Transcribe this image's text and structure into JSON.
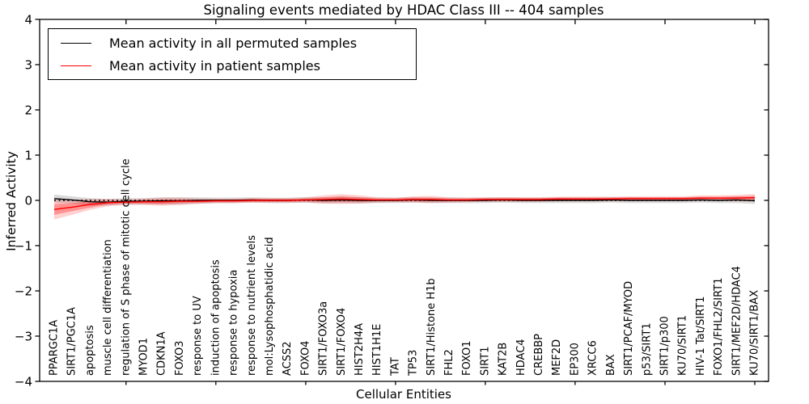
{
  "figure": {
    "title": "Signaling events mediated by HDAC Class III -- 404 samples",
    "xlabel": "Cellular Entities",
    "ylabel": "Inferred Activity"
  },
  "chart_data": {
    "type": "line",
    "title": "Signaling events mediated by HDAC Class III -- 404 samples",
    "xlabel": "Cellular Entities",
    "ylabel": "Inferred Activity",
    "ylim": [
      -4,
      4
    ],
    "yticks": [
      4,
      3,
      2,
      1,
      0,
      -1,
      -2,
      -3,
      -4
    ],
    "x_major_tick_every": 5,
    "grid": false,
    "legend_position": "upper left",
    "zero_line": {
      "y": 0,
      "style": "dotted",
      "color": "#000000"
    },
    "categories": [
      "PPARGC1A",
      "SIRT1/PGC1A",
      "apoptosis",
      "muscle cell differentiation",
      "regulation of S phase of mitotic cell cycle",
      "MYOD1",
      "CDKN1A",
      "FOXO3",
      "response to UV",
      "induction of apoptosis",
      "response to hypoxia",
      "response to nutrient levels",
      "mol:Lysophosphatidic acid",
      "ACSS2",
      "FOXO4",
      "SIRT1/FOXO3a",
      "SIRT1/FOXO4",
      "HIST2H4A",
      "HIST1H1E",
      "TAT",
      "TP53",
      "SIRT1/Histone H1b",
      "FHL2",
      "FOXO1",
      "SIRT1",
      "KAT2B",
      "HDAC4",
      "CREBBP",
      "MEF2D",
      "EP300",
      "XRCC6",
      "BAX",
      "SIRT1/PCAF/MYOD",
      "p53/SIRT1",
      "SIRT1/p300",
      "KU70/SIRT1",
      "HIV-1 Tat/SIRT1",
      "FOXO1/FHL2/SIRT1",
      "SIRT1/MEF2D/HDAC4",
      "KU70/SIRT1/BAX"
    ],
    "series": [
      {
        "name": "Mean activity in all permuted samples",
        "color": "#000000",
        "band_color": "rgba(0,0,0,0.14)",
        "values": [
          0.04,
          0.01,
          -0.03,
          -0.04,
          -0.02,
          -0.02,
          -0.01,
          -0.01,
          0,
          0,
          0,
          0.01,
          0,
          0,
          0.01,
          0,
          0.01,
          0,
          0,
          0,
          0.01,
          0,
          0,
          0,
          0,
          0.01,
          0,
          0,
          0,
          0,
          0,
          0.01,
          0,
          0,
          0,
          0,
          0.01,
          0,
          0.01,
          -0.01
        ],
        "band": [
          0.09,
          0.08,
          0.08,
          0.07,
          0.07,
          0.07,
          0.08,
          0.08,
          0.07,
          0.06,
          0.06,
          0.06,
          0.06,
          0.06,
          0.06,
          0.07,
          0.07,
          0.07,
          0.06,
          0.06,
          0.06,
          0.06,
          0.06,
          0.06,
          0.06,
          0.06,
          0.06,
          0.06,
          0.06,
          0.06,
          0.06,
          0.06,
          0.06,
          0.06,
          0.06,
          0.06,
          0.06,
          0.06,
          0.07,
          0.07
        ]
      },
      {
        "name": "Mean activity in patient samples",
        "color": "#ff0000",
        "band_color": "rgba(255,0,0,0.18)",
        "band_inner_color": "rgba(255,0,0,0.30)",
        "values": [
          -0.2,
          -0.15,
          -0.09,
          -0.05,
          -0.04,
          -0.03,
          -0.03,
          -0.02,
          -0.02,
          -0.01,
          -0.01,
          0,
          0,
          0,
          0.01,
          0.02,
          0.03,
          0.02,
          0.01,
          0.01,
          0.02,
          0.02,
          0.01,
          0.01,
          0.02,
          0.02,
          0.02,
          0.02,
          0.03,
          0.03,
          0.03,
          0.03,
          0.04,
          0.04,
          0.04,
          0.04,
          0.05,
          0.05,
          0.05,
          0.06
        ],
        "band": [
          0.22,
          0.17,
          0.12,
          0.08,
          0.06,
          0.07,
          0.09,
          0.08,
          0.06,
          0.05,
          0.05,
          0.05,
          0.05,
          0.05,
          0.06,
          0.09,
          0.11,
          0.09,
          0.06,
          0.05,
          0.07,
          0.08,
          0.06,
          0.05,
          0.05,
          0.05,
          0.05,
          0.05,
          0.05,
          0.05,
          0.05,
          0.05,
          0.05,
          0.05,
          0.05,
          0.05,
          0.06,
          0.06,
          0.07,
          0.08
        ],
        "band_inner": [
          0.12,
          0.09,
          0.07,
          0.04,
          0.03,
          0.04,
          0.05,
          0.04,
          0.03,
          0.03,
          0.03,
          0.03,
          0.03,
          0.03,
          0.03,
          0.05,
          0.06,
          0.05,
          0.03,
          0.03,
          0.04,
          0.04,
          0.03,
          0.03,
          0.03,
          0.03,
          0.03,
          0.03,
          0.03,
          0.03,
          0.03,
          0.03,
          0.03,
          0.03,
          0.03,
          0.03,
          0.03,
          0.03,
          0.04,
          0.04
        ]
      }
    ]
  }
}
